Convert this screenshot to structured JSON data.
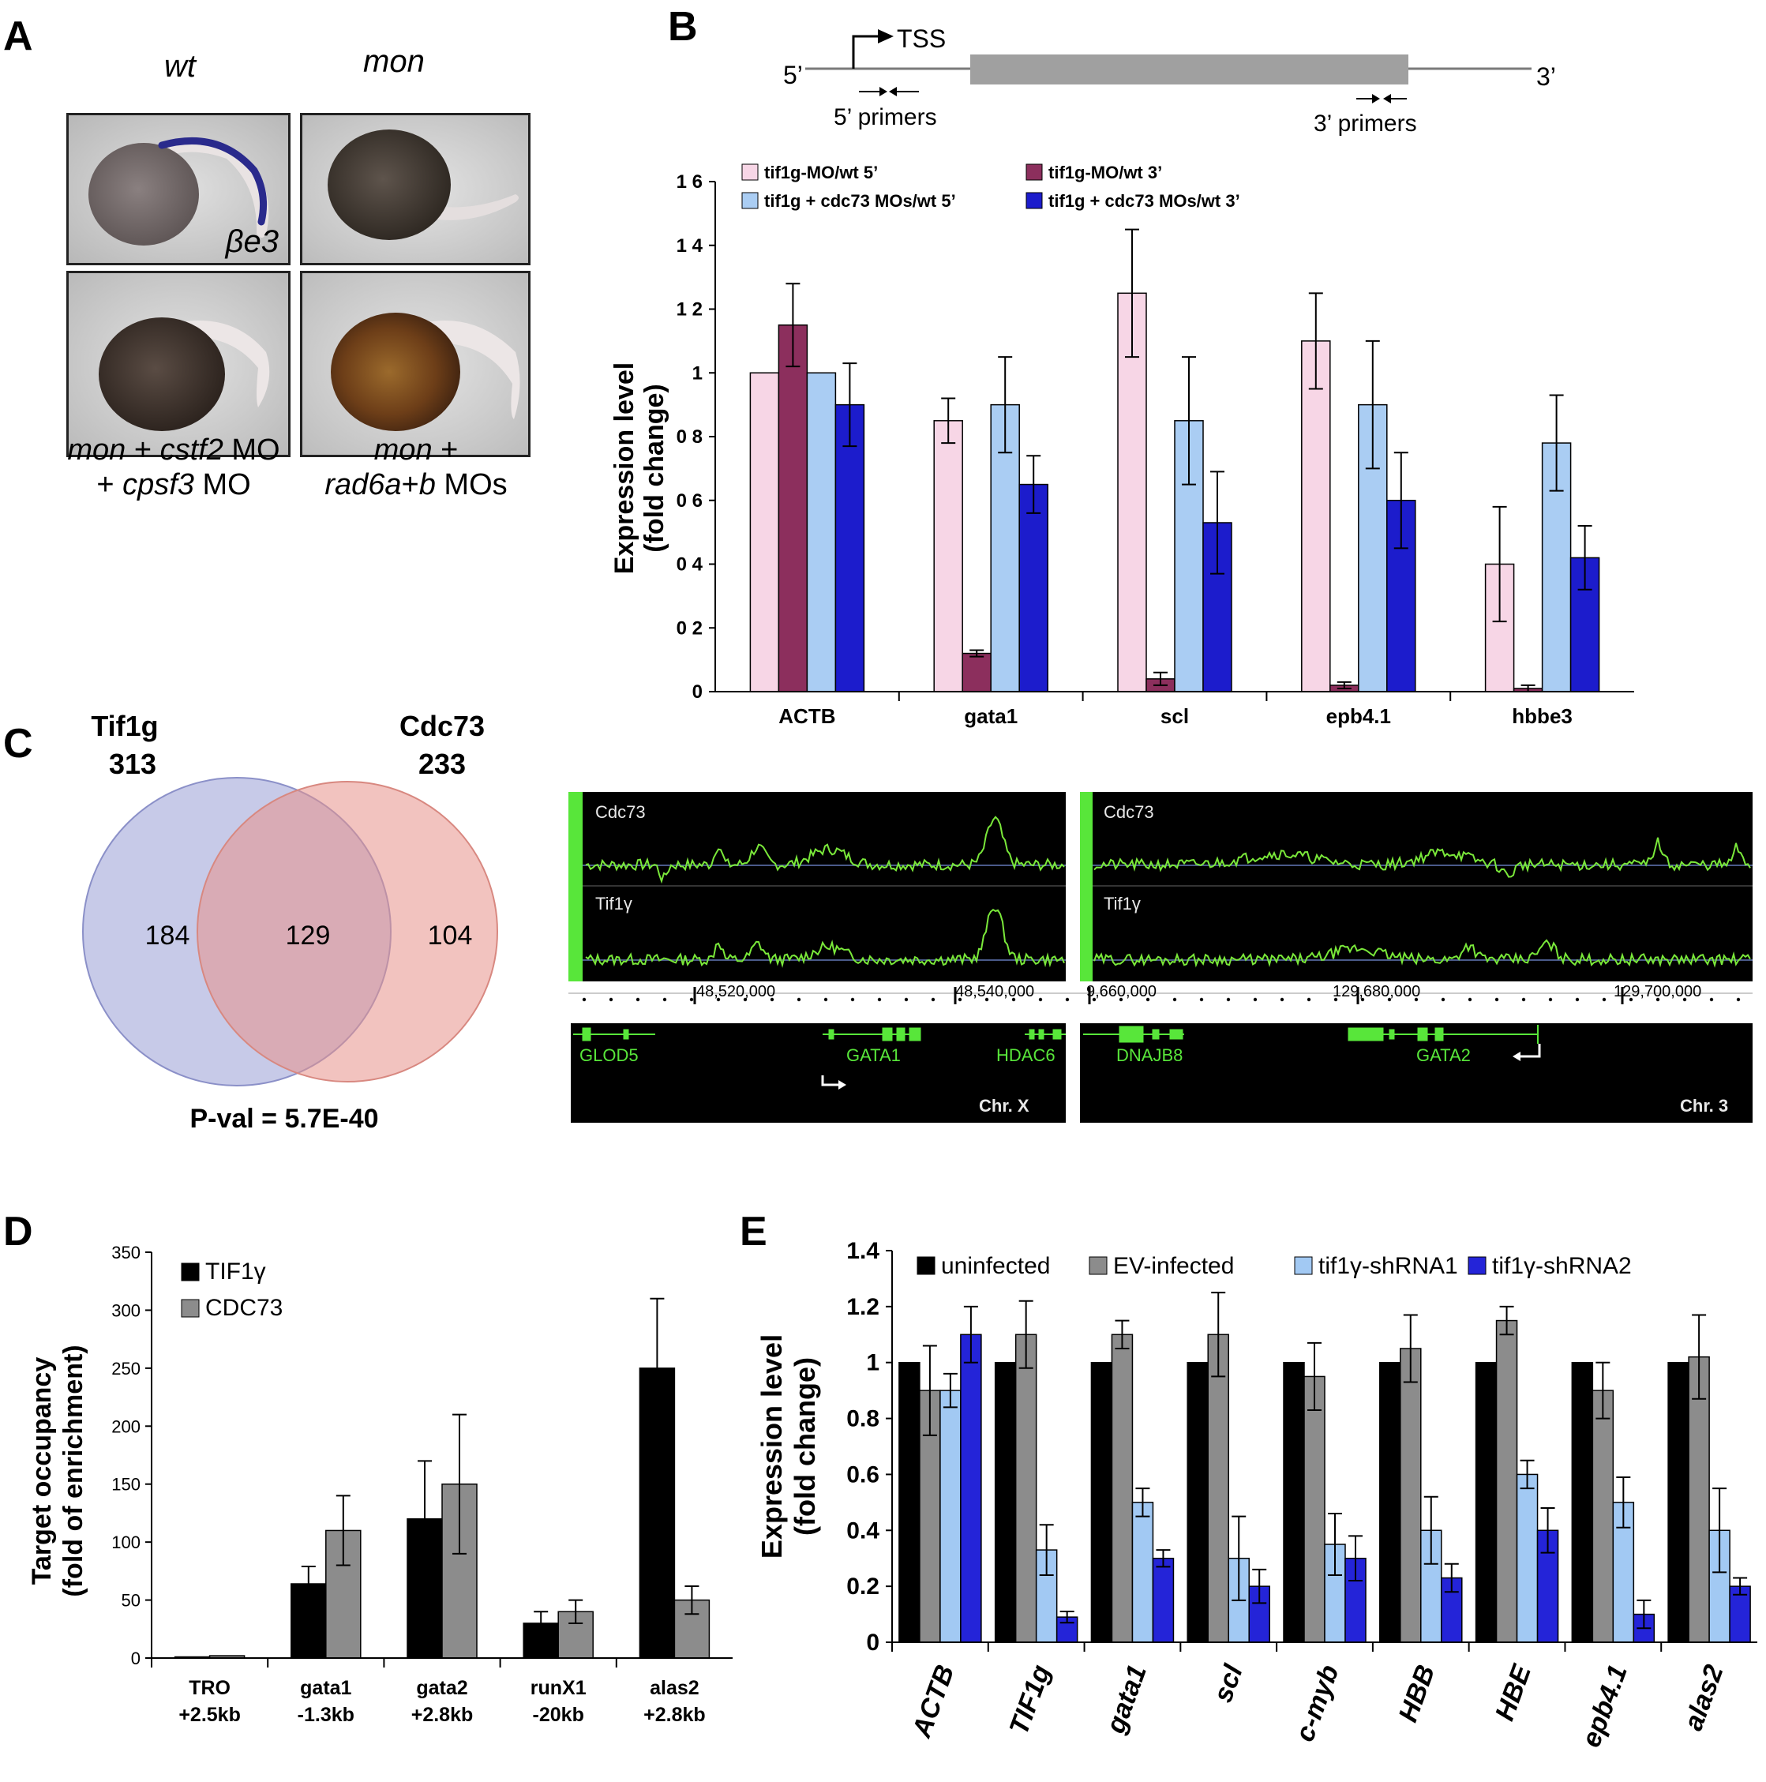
{
  "panels": {
    "A": {
      "letter": "A",
      "col_wt": "wt",
      "col_mon": "mon",
      "probe": "βe3",
      "cap1_a": "mon",
      "cap1_b": " + ",
      "cap1_c": "cstf2",
      "cap1_d": " MO",
      "cap1_e": "+ ",
      "cap1_f": "cpsf3",
      "cap1_g": " MO",
      "cap2_a": "mon",
      "cap2_b": " +",
      "cap2_c": "rad6a",
      "cap2_d": "+",
      "cap2_e": "b",
      "cap2_f": " MOs"
    },
    "B": {
      "letter": "B",
      "tss": "TSS",
      "five": "5’",
      "three": "3’",
      "primers5": "5’ primers",
      "primers3": "3’ primers"
    },
    "C": {
      "letter": "C",
      "set1_name": "Tif1g",
      "set1_total": "313",
      "set2_name": "Cdc73",
      "set2_total": "233",
      "only1": "184",
      "both": "129",
      "only2": "104",
      "pval": "P-val = 5.7E-40",
      "track1": "Cdc73",
      "track2": "Tif1γ",
      "left_coord1": "48,520,000",
      "left_coord2": "48,540,000",
      "right_coord0": "9,660,000",
      "right_coord1": "129,680,000",
      "right_coord2": "129,700,000",
      "genes_left": [
        "GLOD5",
        "GATA1",
        "HDAC6"
      ],
      "genes_right": [
        "DNAJB8",
        "GATA2"
      ],
      "chr_left": "Chr. X",
      "chr_right": "Chr. 3"
    },
    "D": {
      "letter": "D"
    },
    "E": {
      "letter": "E"
    }
  },
  "chart_data": [
    {
      "id": "B",
      "type": "bar",
      "ylabel": "Expression level (fold change)",
      "ytick_labels": [
        "0",
        "0 2",
        "0 4",
        "0 6",
        "0 8",
        "1",
        "1 2",
        "1 4",
        "1 6"
      ],
      "ylim": [
        0,
        1.6
      ],
      "categories": [
        "ACTB",
        "gata1",
        "scl",
        "epb4.1",
        "hbbe3"
      ],
      "series": [
        {
          "name": "tif1g-MO/wt 5'",
          "color": "#f7d6e6",
          "values": [
            1.0,
            0.85,
            1.25,
            1.1,
            0.4
          ],
          "err": [
            0,
            0.07,
            0.2,
            0.15,
            0.18
          ]
        },
        {
          "name": "tif1g-MO/wt 3'",
          "color": "#8c2f5d",
          "values": [
            1.15,
            0.12,
            0.04,
            0.02,
            0.01
          ],
          "err": [
            0.13,
            0.01,
            0.02,
            0.01,
            0.01
          ]
        },
        {
          "name": "tif1g + cdc73 MOs/wt 5'",
          "color": "#aacdf3",
          "values": [
            1.0,
            0.9,
            0.85,
            0.9,
            0.78
          ],
          "err": [
            0,
            0.15,
            0.2,
            0.2,
            0.15
          ]
        },
        {
          "name": "tif1g + cdc73 MOs/wt 3'",
          "color": "#1c1ccc",
          "values": [
            0.9,
            0.65,
            0.53,
            0.6,
            0.42
          ],
          "err": [
            0.13,
            0.09,
            0.16,
            0.15,
            0.1
          ]
        }
      ],
      "legend": "top"
    },
    {
      "id": "D",
      "type": "bar",
      "ylabel": "Target occupancy (fold of enrichment)",
      "ylim": [
        0,
        350
      ],
      "yticks": [
        0,
        50,
        100,
        150,
        200,
        250,
        300,
        350
      ],
      "categories": [
        "TRO +2.5kb",
        "gata1 -1.3kb",
        "gata2 +2.8kb",
        "runX1 -20kb",
        "alas2 +2.8kb"
      ],
      "category_lines": [
        [
          "TRO",
          "+2.5kb"
        ],
        [
          "gata1",
          "-1.3kb"
        ],
        [
          "gata2",
          "+2.8kb"
        ],
        [
          "runX1",
          "-20kb"
        ],
        [
          "alas2",
          "+2.8kb"
        ]
      ],
      "series": [
        {
          "name": "TIF1γ",
          "color": "#000000",
          "values": [
            1,
            64,
            120,
            30,
            250
          ],
          "err": [
            0,
            15,
            50,
            10,
            60
          ]
        },
        {
          "name": "CDC73",
          "color": "#8c8c8c",
          "values": [
            2,
            110,
            150,
            40,
            50
          ],
          "err": [
            0,
            30,
            60,
            10,
            12
          ]
        }
      ],
      "legend": "top-left"
    },
    {
      "id": "E",
      "type": "bar",
      "ylabel": "Expression level (fold change)",
      "ylim": [
        0,
        1.4
      ],
      "yticks": [
        "0",
        "0.2",
        "0.4",
        "0.6",
        "0.8",
        "1",
        "1.2",
        "1.4"
      ],
      "categories": [
        "ACTB",
        "TIF1g",
        "gata1",
        "scl",
        "c-myb",
        "HBB",
        "HBE",
        "epb4.1",
        "alas2"
      ],
      "series": [
        {
          "name": "uninfected",
          "color": "#000000",
          "values": [
            1,
            1,
            1,
            1,
            1,
            1,
            1,
            1,
            1
          ],
          "err": [
            0,
            0,
            0,
            0,
            0,
            0,
            0,
            0,
            0
          ]
        },
        {
          "name": "EV-infected",
          "color": "#8c8c8c",
          "values": [
            0.9,
            1.1,
            1.1,
            1.1,
            0.95,
            1.05,
            1.15,
            0.9,
            1.02
          ],
          "err": [
            0.16,
            0.12,
            0.05,
            0.15,
            0.12,
            0.12,
            0.05,
            0.1,
            0.15
          ]
        },
        {
          "name": "tif1γ-shRNA1",
          "color": "#a2c9f3",
          "values": [
            0.9,
            0.33,
            0.5,
            0.3,
            0.35,
            0.4,
            0.6,
            0.5,
            0.4
          ],
          "err": [
            0.06,
            0.09,
            0.05,
            0.15,
            0.11,
            0.12,
            0.05,
            0.09,
            0.15
          ]
        },
        {
          "name": "tif1γ-shRNA2",
          "color": "#2424d8",
          "values": [
            1.1,
            0.09,
            0.3,
            0.2,
            0.3,
            0.23,
            0.4,
            0.1,
            0.2
          ],
          "err": [
            0.1,
            0.02,
            0.03,
            0.06,
            0.08,
            0.05,
            0.08,
            0.05,
            0.03
          ]
        }
      ],
      "legend": "top"
    }
  ]
}
